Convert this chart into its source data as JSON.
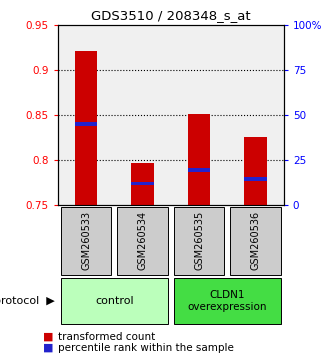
{
  "title": "GDS3510 / 208348_s_at",
  "samples": [
    "GSM260533",
    "GSM260534",
    "GSM260535",
    "GSM260536"
  ],
  "bar_values": [
    0.921,
    0.797,
    0.851,
    0.826
  ],
  "bar_base": 0.75,
  "percentile_values": [
    0.84,
    0.774,
    0.789,
    0.779
  ],
  "ylim_left": [
    0.75,
    0.95
  ],
  "ylim_right": [
    0,
    100
  ],
  "yticks_left": [
    0.75,
    0.8,
    0.85,
    0.9,
    0.95
  ],
  "yticks_right": [
    0,
    25,
    50,
    75,
    100
  ],
  "ytick_labels_right": [
    "0",
    "25",
    "50",
    "75",
    "100%"
  ],
  "bar_color": "#cc0000",
  "percentile_color": "#2222cc",
  "protocol_colors": [
    "#bbffbb",
    "#44dd44"
  ],
  "sample_box_color": "#cccccc",
  "legend_items": [
    "transformed count",
    "percentile rank within the sample"
  ],
  "legend_colors": [
    "#cc0000",
    "#2222cc"
  ],
  "protocol_label": "protocol",
  "background_color": "#ffffff",
  "plot_bg_color": "#f0f0f0"
}
